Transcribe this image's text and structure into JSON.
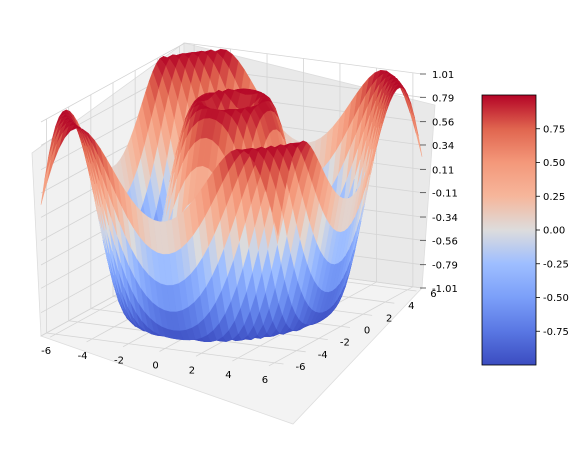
{
  "chart_data": {
    "type": "surface",
    "function": "sin(sqrt(x^2 + y^2))",
    "x_range": [
      -6.5,
      6.5
    ],
    "y_range": [
      -6.5,
      6.5
    ],
    "zlim": [
      -1.01,
      1.01
    ],
    "colormap": "coolwarm",
    "grid": true,
    "x_ticks": [
      "-6",
      "-4",
      "-2",
      "0",
      "2",
      "4",
      "6"
    ],
    "y_ticks": [
      "-6",
      "-4",
      "-2",
      "0",
      "2",
      "4",
      "6"
    ],
    "z_ticks": [
      "-1.01",
      "-0.79",
      "-0.56",
      "-0.34",
      "-0.11",
      "0.11",
      "0.34",
      "0.56",
      "0.79",
      "1.01"
    ],
    "colorbar": {
      "ticks": [
        "0.75",
        "0.50",
        "0.25",
        "0.00",
        "-0.25",
        "-0.50",
        "-0.75"
      ],
      "range": [
        -1.0,
        1.0
      ],
      "placement": "right"
    }
  }
}
